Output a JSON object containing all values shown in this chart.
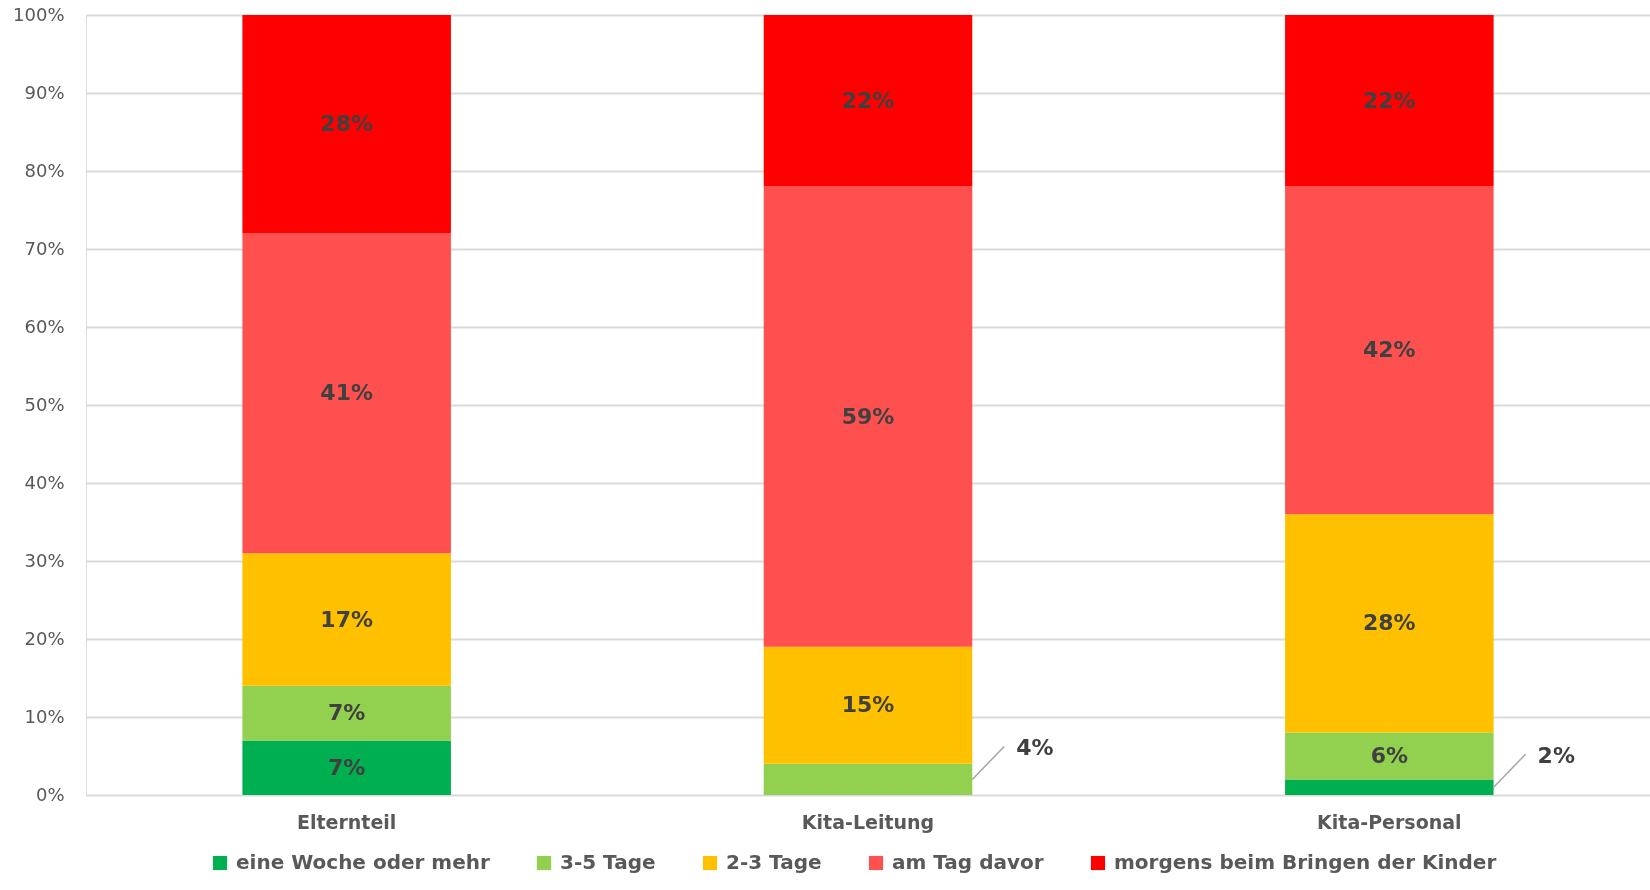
{
  "chart_data": {
    "type": "bar",
    "stacked": true,
    "categories": [
      "Elternteil",
      "Kita-Leitung",
      "Kita-Personal"
    ],
    "series": [
      {
        "name": "eine Woche oder mehr",
        "color": "#00b050",
        "values": [
          7,
          null,
          2
        ],
        "value_labels": [
          "7%",
          null,
          "2%"
        ]
      },
      {
        "name": "3-5 Tage",
        "color": "#92d050",
        "values": [
          7,
          4,
          6
        ],
        "value_labels": [
          "7%",
          "4%",
          "6%"
        ]
      },
      {
        "name": "2-3 Tage",
        "color": "#ffc000",
        "values": [
          17,
          15,
          28
        ],
        "value_labels": [
          "17%",
          "15%",
          "28%"
        ]
      },
      {
        "name": "am Tag davor",
        "color": "#ff5050",
        "values": [
          41,
          59,
          42
        ],
        "value_labels": [
          "41%",
          "59%",
          "42%"
        ]
      },
      {
        "name": "morgens beim Bringen der Kinder",
        "color": "#ff0000",
        "values": [
          28,
          22,
          22
        ],
        "value_labels": [
          "28%",
          "22%",
          "22%"
        ]
      }
    ],
    "ylim": [
      0,
      100
    ],
    "yticks": [
      {
        "value": 0,
        "label": "0%"
      },
      {
        "value": 10,
        "label": "10%"
      },
      {
        "value": 20,
        "label": "20%"
      },
      {
        "value": 30,
        "label": "30%"
      },
      {
        "value": 40,
        "label": "40%"
      },
      {
        "value": 50,
        "label": "50%"
      },
      {
        "value": 60,
        "label": "60%"
      },
      {
        "value": 70,
        "label": "70%"
      },
      {
        "value": 80,
        "label": "80%"
      },
      {
        "value": 90,
        "label": "90%"
      },
      {
        "value": 100,
        "label": "100%"
      }
    ],
    "grid": "y",
    "legend": "bottom"
  }
}
